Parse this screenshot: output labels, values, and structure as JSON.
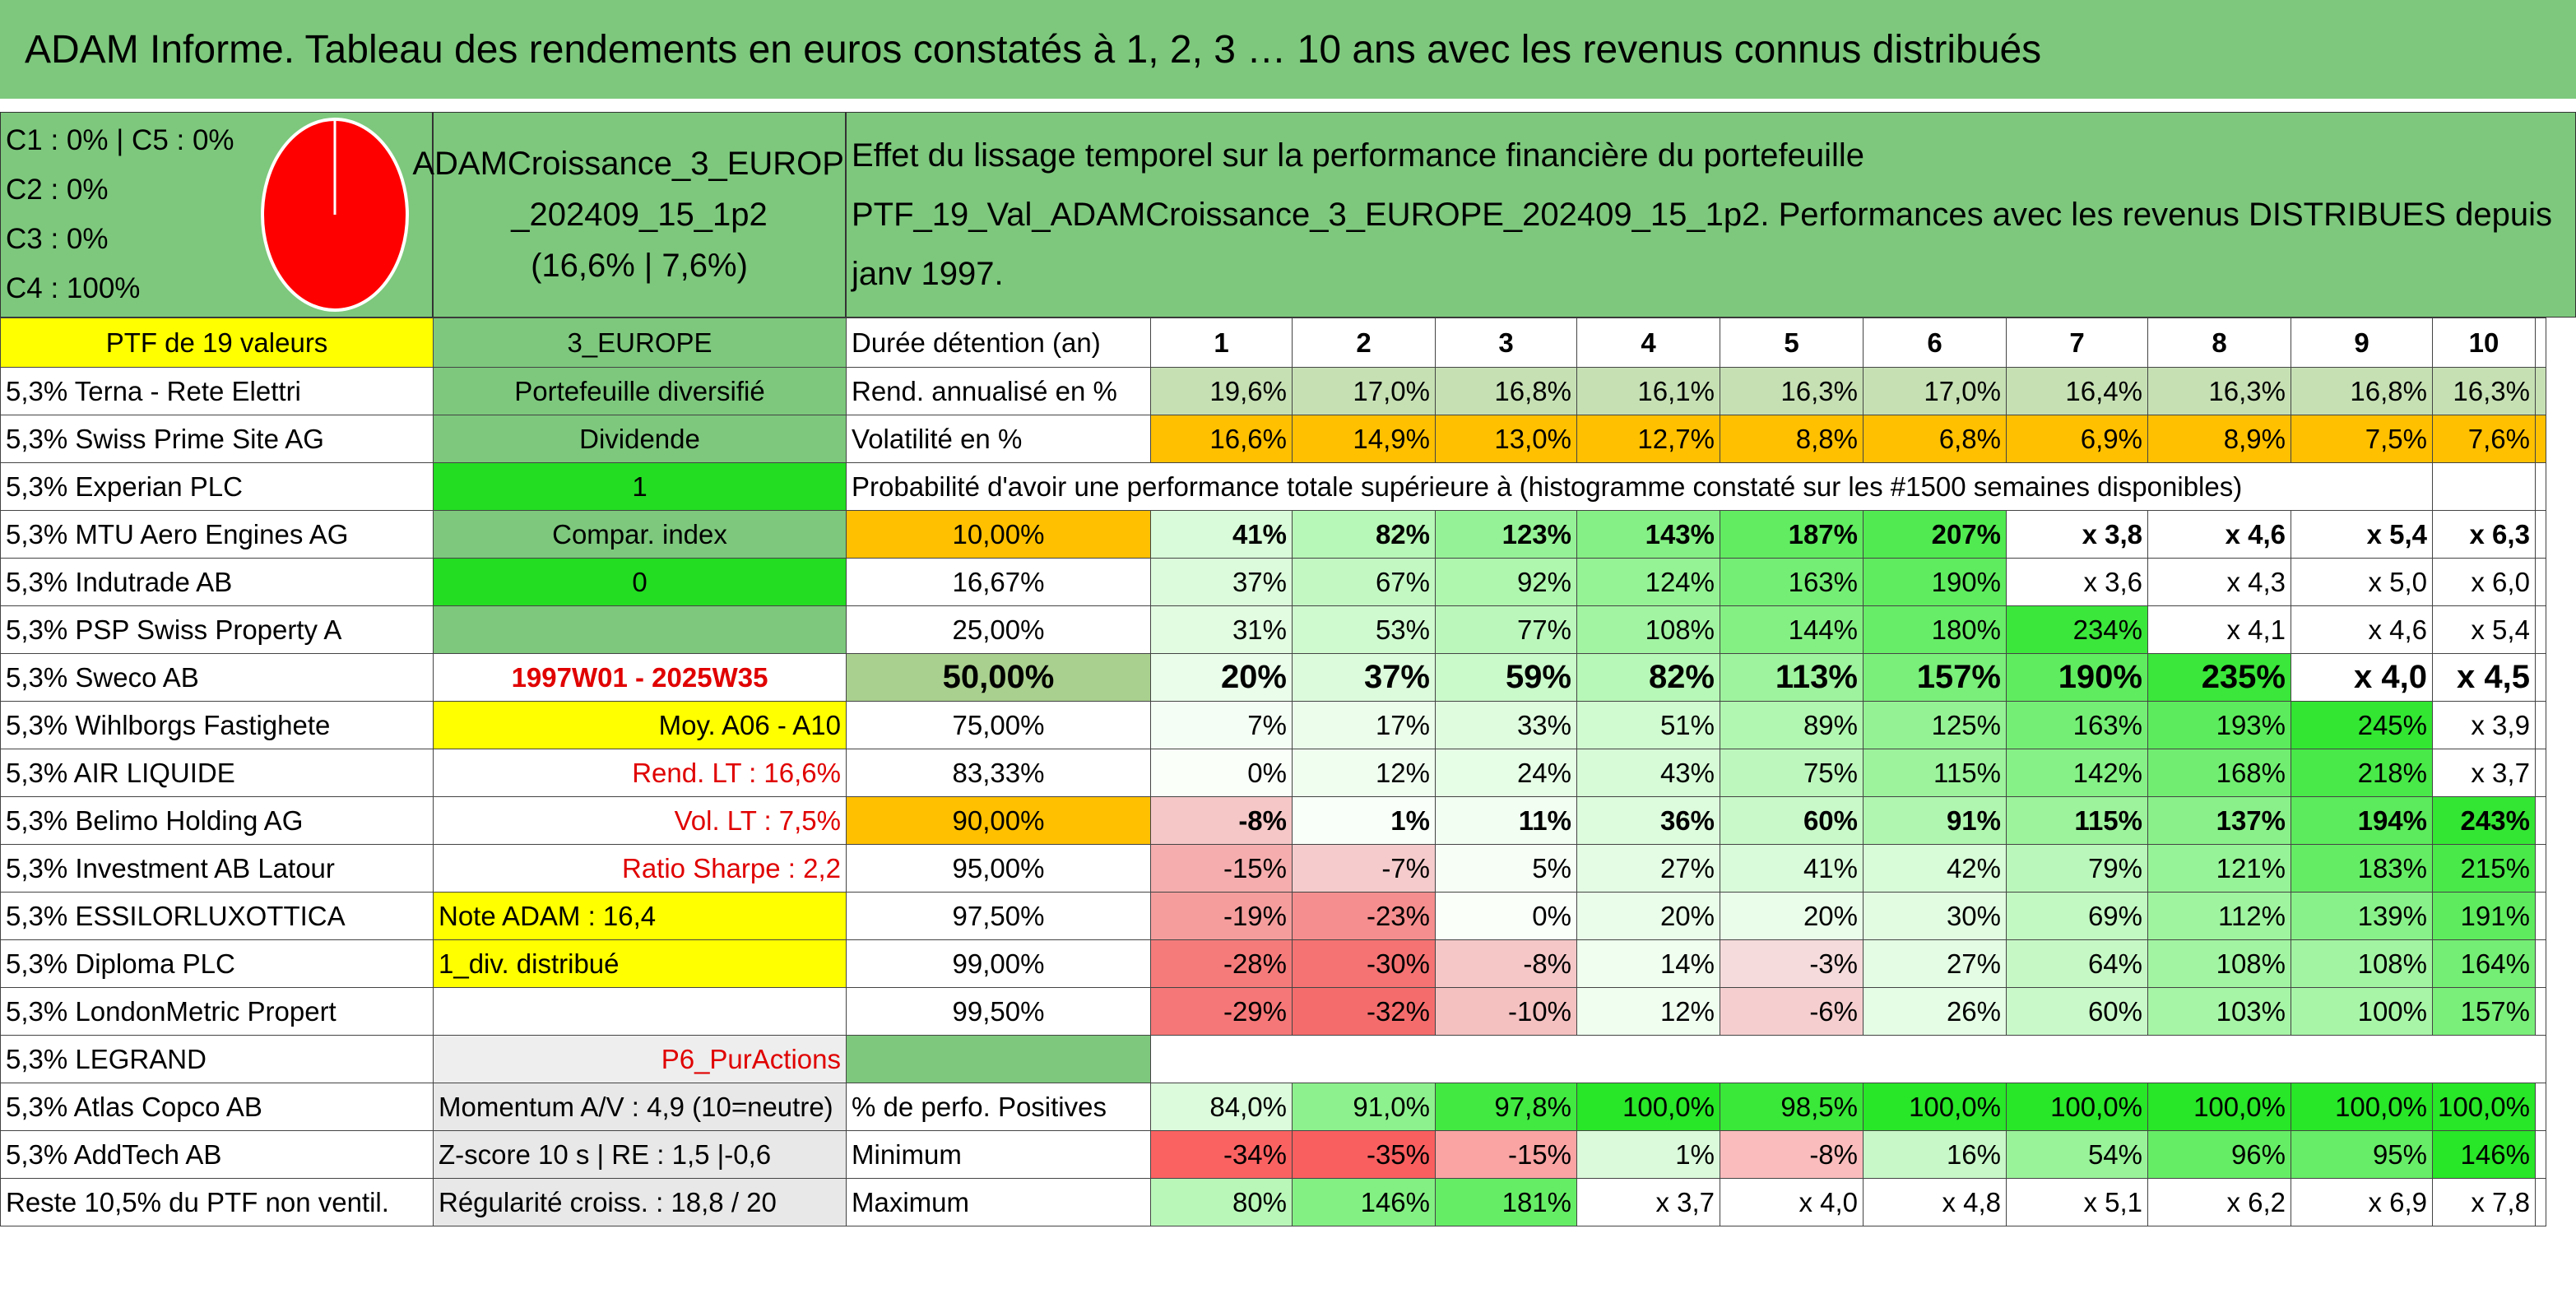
{
  "title": "ADAM Informe. Tableau des rendements en euros constatés à 1, 2, 3 … 10 ans avec les revenus connus distribués",
  "colors": {
    "header_green": "#7dc87d",
    "yellow": "#ffff00",
    "bright_green": "#22dd22",
    "orange": "#ffc000",
    "pie_red": "#ff0000"
  },
  "allocation": {
    "c1c5": "C1 : 0% | C5 : 0%",
    "c2": "C2 : 0%",
    "c3": "C3 : 0%",
    "c4": "C4 : 100%"
  },
  "pie_share_c4": 1.0,
  "portfolio": {
    "name_line1": "ADAMCroissance_3_EUROPE",
    "name_line2": "_202409_15_1p2",
    "stats": "(16,6% | 7,6%)"
  },
  "effect": {
    "line1": "Effet du lissage temporel sur la performance financière du portefeuille",
    "line2": "PTF_19_Val_ADAMCroissance_3_EUROPE_202409_15_1p2. Performances avec les revenus DISTRIBUES depuis janv 1997."
  },
  "ptf_label": "PTF de 19 valeurs",
  "category": "3_EUROPE",
  "duration_label": "Durée détention (an)",
  "years": [
    "1",
    "2",
    "3",
    "4",
    "5",
    "6",
    "7",
    "8",
    "9",
    "10"
  ],
  "holdings": [
    "5,3% Terna - Rete Elettri",
    "5,3% Swiss Prime Site AG",
    "5,3% Experian PLC",
    "5,3% MTU Aero Engines AG",
    "5,3% Indutrade AB",
    "5,3% PSP Swiss Property A",
    "5,3% Sweco AB",
    "5,3% Wihlborgs Fastighete",
    "5,3% AIR LIQUIDE",
    "5,3% Belimo Holding AG",
    "5,3% Investment AB Latour",
    "5,3% ESSILORLUXOTTICA",
    "5,3% Diploma PLC",
    "5,3% LondonMetric Propert",
    "5,3% LEGRAND",
    "5,3% Atlas Copco AB",
    "5,3% AddTech AB",
    "Reste 10,5% du PTF non ventil."
  ],
  "info": [
    "Portefeuille diversifié",
    "Dividende",
    "1",
    "Compar. index",
    "0",
    "",
    "1997W01 - 2025W35",
    "Moy. A06 - A10",
    "Rend. LT : 16,6%",
    "Vol. LT : 7,5%",
    "Ratio Sharpe : 2,2",
    "Note ADAM : 16,4",
    "1_div. distribué",
    "",
    "P6_PurActions",
    "Momentum A/V : 4,9 (10=neutre)",
    "Z-score 10 s | RE : 1,5 |-0,6",
    "Régularité croiss. : 18,8 / 20"
  ],
  "rend": {
    "label": "Rend. annualisé en %",
    "values": [
      "19,6%",
      "17,0%",
      "16,8%",
      "16,1%",
      "16,3%",
      "17,0%",
      "16,4%",
      "16,3%",
      "16,8%",
      "16,3%"
    ]
  },
  "vol": {
    "label": "Volatilité en %",
    "values": [
      "16,6%",
      "14,9%",
      "13,0%",
      "12,7%",
      "8,8%",
      "6,8%",
      "6,9%",
      "8,9%",
      "7,5%",
      "7,6%"
    ]
  },
  "proba_title": "Probabilité d'avoir une performance totale supérieure à (histogramme constaté sur les #1500 semaines disponibles)",
  "quantiles": [
    {
      "label": "10,00%",
      "values": [
        "41%",
        "82%",
        "123%",
        "143%",
        "187%",
        "207%",
        "x 3,8",
        "x 4,6",
        "x 5,4",
        "x 6,3"
      ]
    },
    {
      "label": "16,67%",
      "values": [
        "37%",
        "67%",
        "92%",
        "124%",
        "163%",
        "190%",
        "x 3,6",
        "x 4,3",
        "x 5,0",
        "x 6,0"
      ]
    },
    {
      "label": "25,00%",
      "values": [
        "31%",
        "53%",
        "77%",
        "108%",
        "144%",
        "180%",
        "234%",
        "x 4,1",
        "x 4,6",
        "x 5,4"
      ]
    },
    {
      "label": "50,00%",
      "values": [
        "20%",
        "37%",
        "59%",
        "82%",
        "113%",
        "157%",
        "190%",
        "235%",
        "x 4,0",
        "x 4,5"
      ]
    },
    {
      "label": "75,00%",
      "values": [
        "7%",
        "17%",
        "33%",
        "51%",
        "89%",
        "125%",
        "163%",
        "193%",
        "245%",
        "x 3,9"
      ]
    },
    {
      "label": "83,33%",
      "values": [
        "0%",
        "12%",
        "24%",
        "43%",
        "75%",
        "115%",
        "142%",
        "168%",
        "218%",
        "x 3,7"
      ]
    },
    {
      "label": "90,00%",
      "values": [
        "-8%",
        "1%",
        "11%",
        "36%",
        "60%",
        "91%",
        "115%",
        "137%",
        "194%",
        "243%"
      ]
    },
    {
      "label": "95,00%",
      "values": [
        "-15%",
        "-7%",
        "5%",
        "27%",
        "41%",
        "42%",
        "79%",
        "121%",
        "183%",
        "215%"
      ]
    },
    {
      "label": "97,50%",
      "values": [
        "-19%",
        "-23%",
        "0%",
        "20%",
        "20%",
        "30%",
        "69%",
        "112%",
        "139%",
        "191%"
      ]
    },
    {
      "label": "99,00%",
      "values": [
        "-28%",
        "-30%",
        "-8%",
        "14%",
        "-3%",
        "27%",
        "64%",
        "108%",
        "108%",
        "164%"
      ]
    },
    {
      "label": "99,50%",
      "values": [
        "-29%",
        "-32%",
        "-10%",
        "12%",
        "-6%",
        "26%",
        "60%",
        "103%",
        "100%",
        "157%"
      ]
    }
  ],
  "positives": {
    "label": "% de perfo. Positives",
    "values": [
      "84,0%",
      "91,0%",
      "97,8%",
      "100,0%",
      "98,5%",
      "100,0%",
      "100,0%",
      "100,0%",
      "100,0%",
      "100,0%"
    ]
  },
  "minimum": {
    "label": "Minimum",
    "values": [
      "-34%",
      "-35%",
      "-15%",
      "1%",
      "-8%",
      "16%",
      "54%",
      "96%",
      "95%",
      "146%"
    ]
  },
  "maximum": {
    "label": "Maximum",
    "values": [
      "80%",
      "146%",
      "181%",
      "x 3,7",
      "x 4,0",
      "x 4,8",
      "x 5,1",
      "x 6,2",
      "x 6,9",
      "x 7,8"
    ]
  }
}
